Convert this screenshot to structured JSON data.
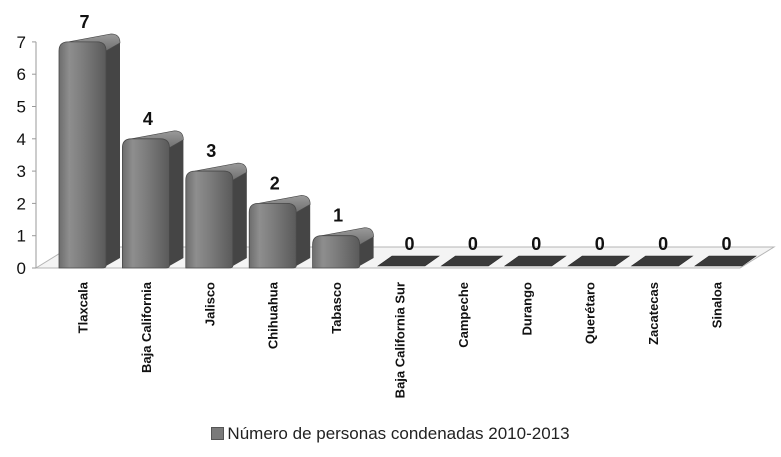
{
  "chart_data": {
    "type": "bar",
    "style": "3d-cylinder-bars",
    "categories": [
      "Tlaxcala",
      "Baja California",
      "Jalisco",
      "Chihuahua",
      "Tabasco",
      "Baja California Sur",
      "Campeche",
      "Durango",
      "Querétaro",
      "Zacatecas",
      "Sinaloa"
    ],
    "series": [
      {
        "name": "Número de personas condenadas 2010-2013",
        "values": [
          7,
          4,
          3,
          2,
          1,
          0,
          0,
          0,
          0,
          0,
          0
        ]
      }
    ],
    "ylim": [
      0,
      7
    ],
    "yticks": [
      0,
      1,
      2,
      3,
      4,
      5,
      6,
      7
    ],
    "data_labels": true,
    "legend_position": "bottom",
    "grid": false,
    "colors": {
      "bar": "#7a7a7a",
      "bar_dark": "#3a3a3a",
      "floor": "#f2f2f2"
    }
  }
}
